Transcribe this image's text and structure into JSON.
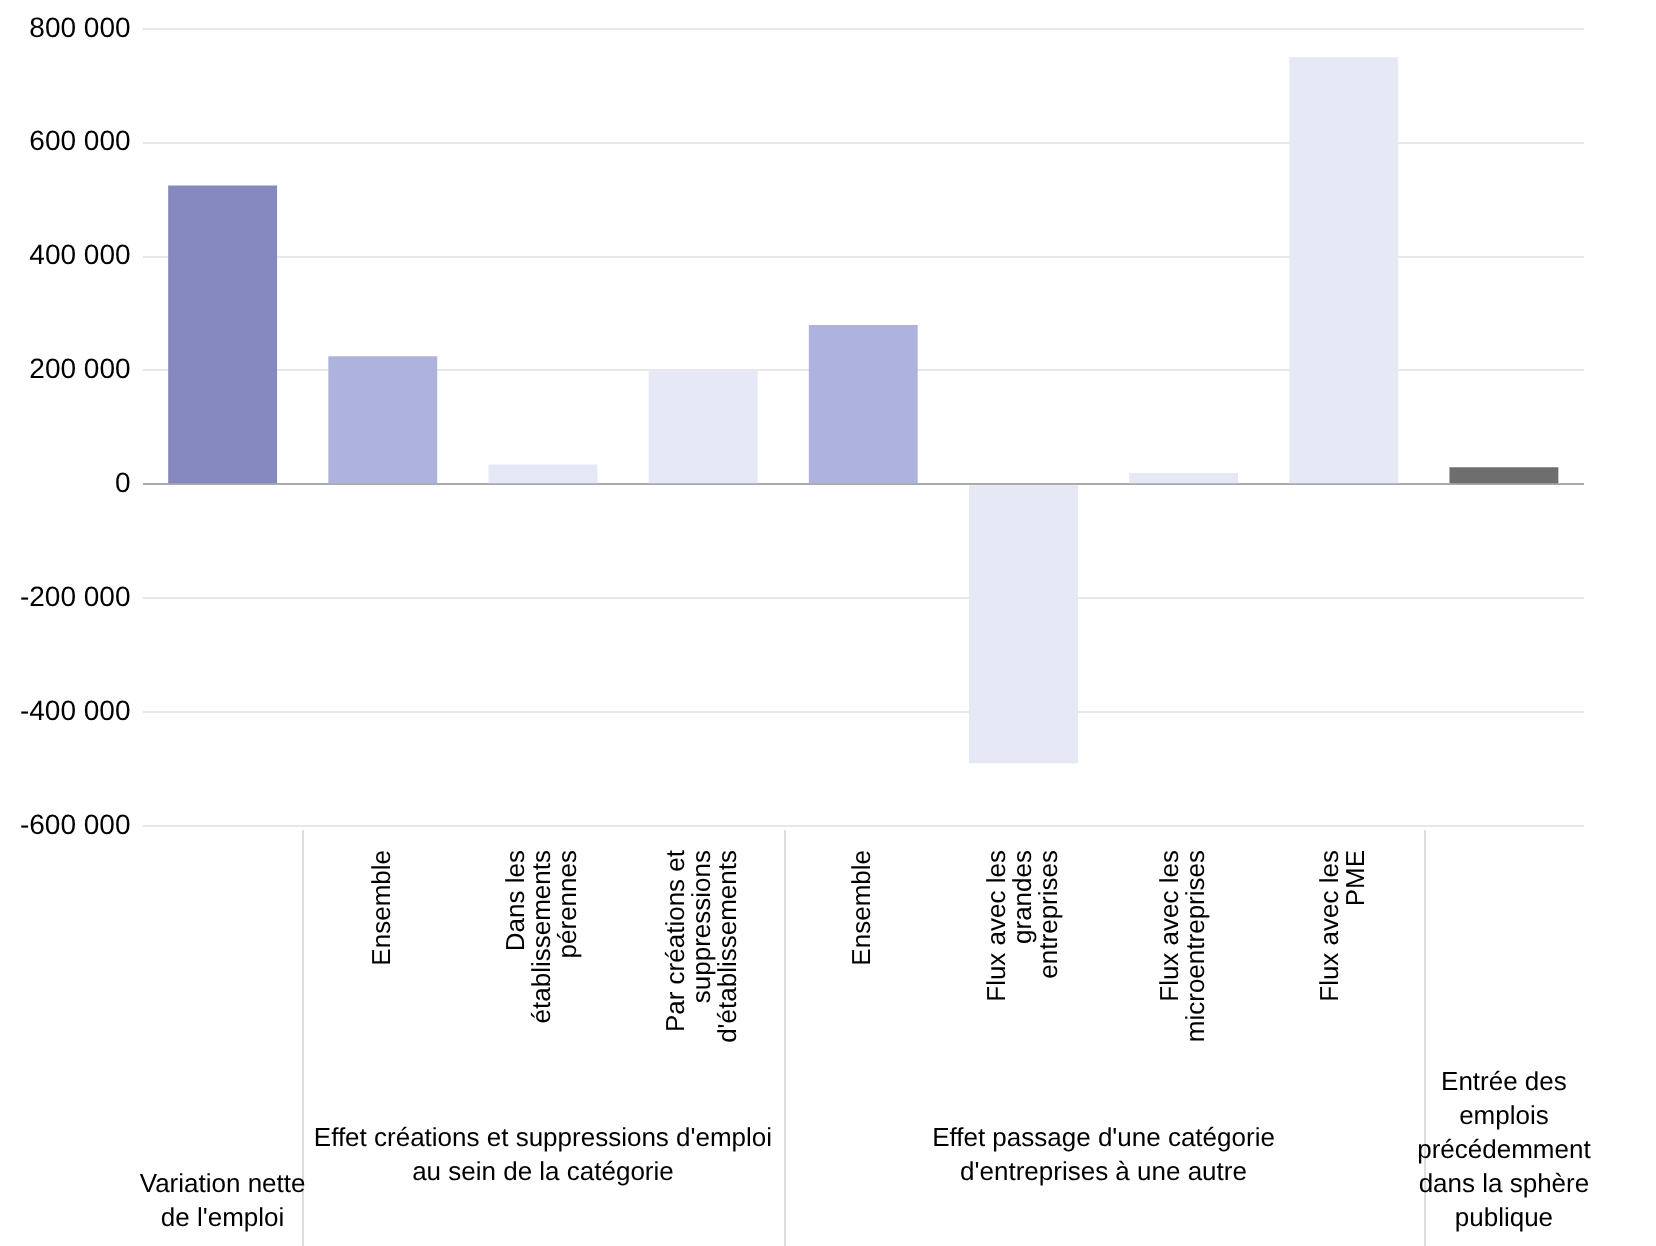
{
  "chart_data": {
    "type": "bar",
    "categories": [
      null,
      "Ensemble",
      "Dans les établissements pérennes",
      "Par créations et suppressions d'établissements",
      "Ensemble",
      "Flux avec les grandes entreprises",
      "Flux avec les microentreprises",
      "Flux avec les PME",
      null
    ],
    "values": [
      525000,
      225000,
      35000,
      200000,
      280000,
      -490000,
      20000,
      750000,
      30000
    ],
    "colors": [
      "#8589c0",
      "#adb3dc",
      "#e6e8f5",
      "#e6e8f5",
      "#adb3dc",
      "#e6e8f5",
      "#e6e8f5",
      "#e6e8f5",
      "#6e6e6e"
    ],
    "ylim": [
      -600000,
      800000
    ],
    "yticks": [
      {
        "value": -600000,
        "label": "-600 000"
      },
      {
        "value": -400000,
        "label": "-400 000"
      },
      {
        "value": -200000,
        "label": "-200 000"
      },
      {
        "value": 0,
        "label": "0"
      },
      {
        "value": 200000,
        "label": "200 000"
      },
      {
        "value": 400000,
        "label": "400 000"
      },
      {
        "value": 600000,
        "label": "600 000"
      },
      {
        "value": 800000,
        "label": "800 000"
      }
    ],
    "annotations": [
      "Variation nette de l'emploi",
      "Effet créations et suppressions d'emploi au sein de la catégorie",
      "Effet passage d'une catégorie d'entreprises à une autre",
      "Entrée des emplois précédemment dans la sphère publique"
    ],
    "grid": "y",
    "legend": false
  }
}
